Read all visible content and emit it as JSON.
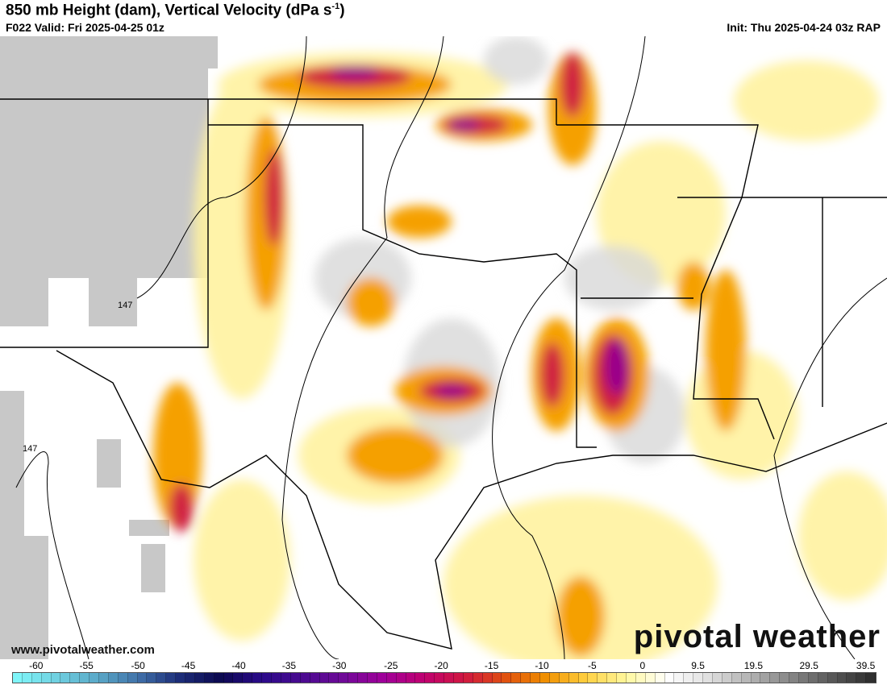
{
  "header": {
    "title": "850 mb Height (dam), Vertical Velocity (dPa s",
    "title_sup": "-1",
    "title_end": ")",
    "valid": "F022 Valid: Fri 2025-04-25 01z",
    "init": "Init: Thu 2025-04-24 03z RAP"
  },
  "map": {
    "contour_labels": [
      "147",
      "147"
    ],
    "no_data_color": "#c8c8c8"
  },
  "footer": {
    "url": "www.pivotalweather.com",
    "logo": "pivotal weather"
  },
  "colorbar": {
    "ticks": [
      "-60",
      "-55",
      "-50",
      "-45",
      "-40",
      "-35",
      "-30",
      "-25",
      "-20",
      "-15",
      "-10",
      "-5",
      "0",
      "9.5",
      "19.5",
      "29.5",
      "39.5"
    ],
    "stops": [
      "#7ff5f9",
      "#6fcfe0",
      "#5aa8c8",
      "#3f6fa8",
      "#1c2c78",
      "#0b0850",
      "#2a0a8a",
      "#4a0a90",
      "#6e0a98",
      "#a0009a",
      "#c00070",
      "#d01840",
      "#e05010",
      "#f09000",
      "#ffd040",
      "#fff8a0",
      "#ffffff",
      "#e0e0e0",
      "#b4b4b4",
      "#888888",
      "#5a5a5a",
      "#303030"
    ]
  }
}
